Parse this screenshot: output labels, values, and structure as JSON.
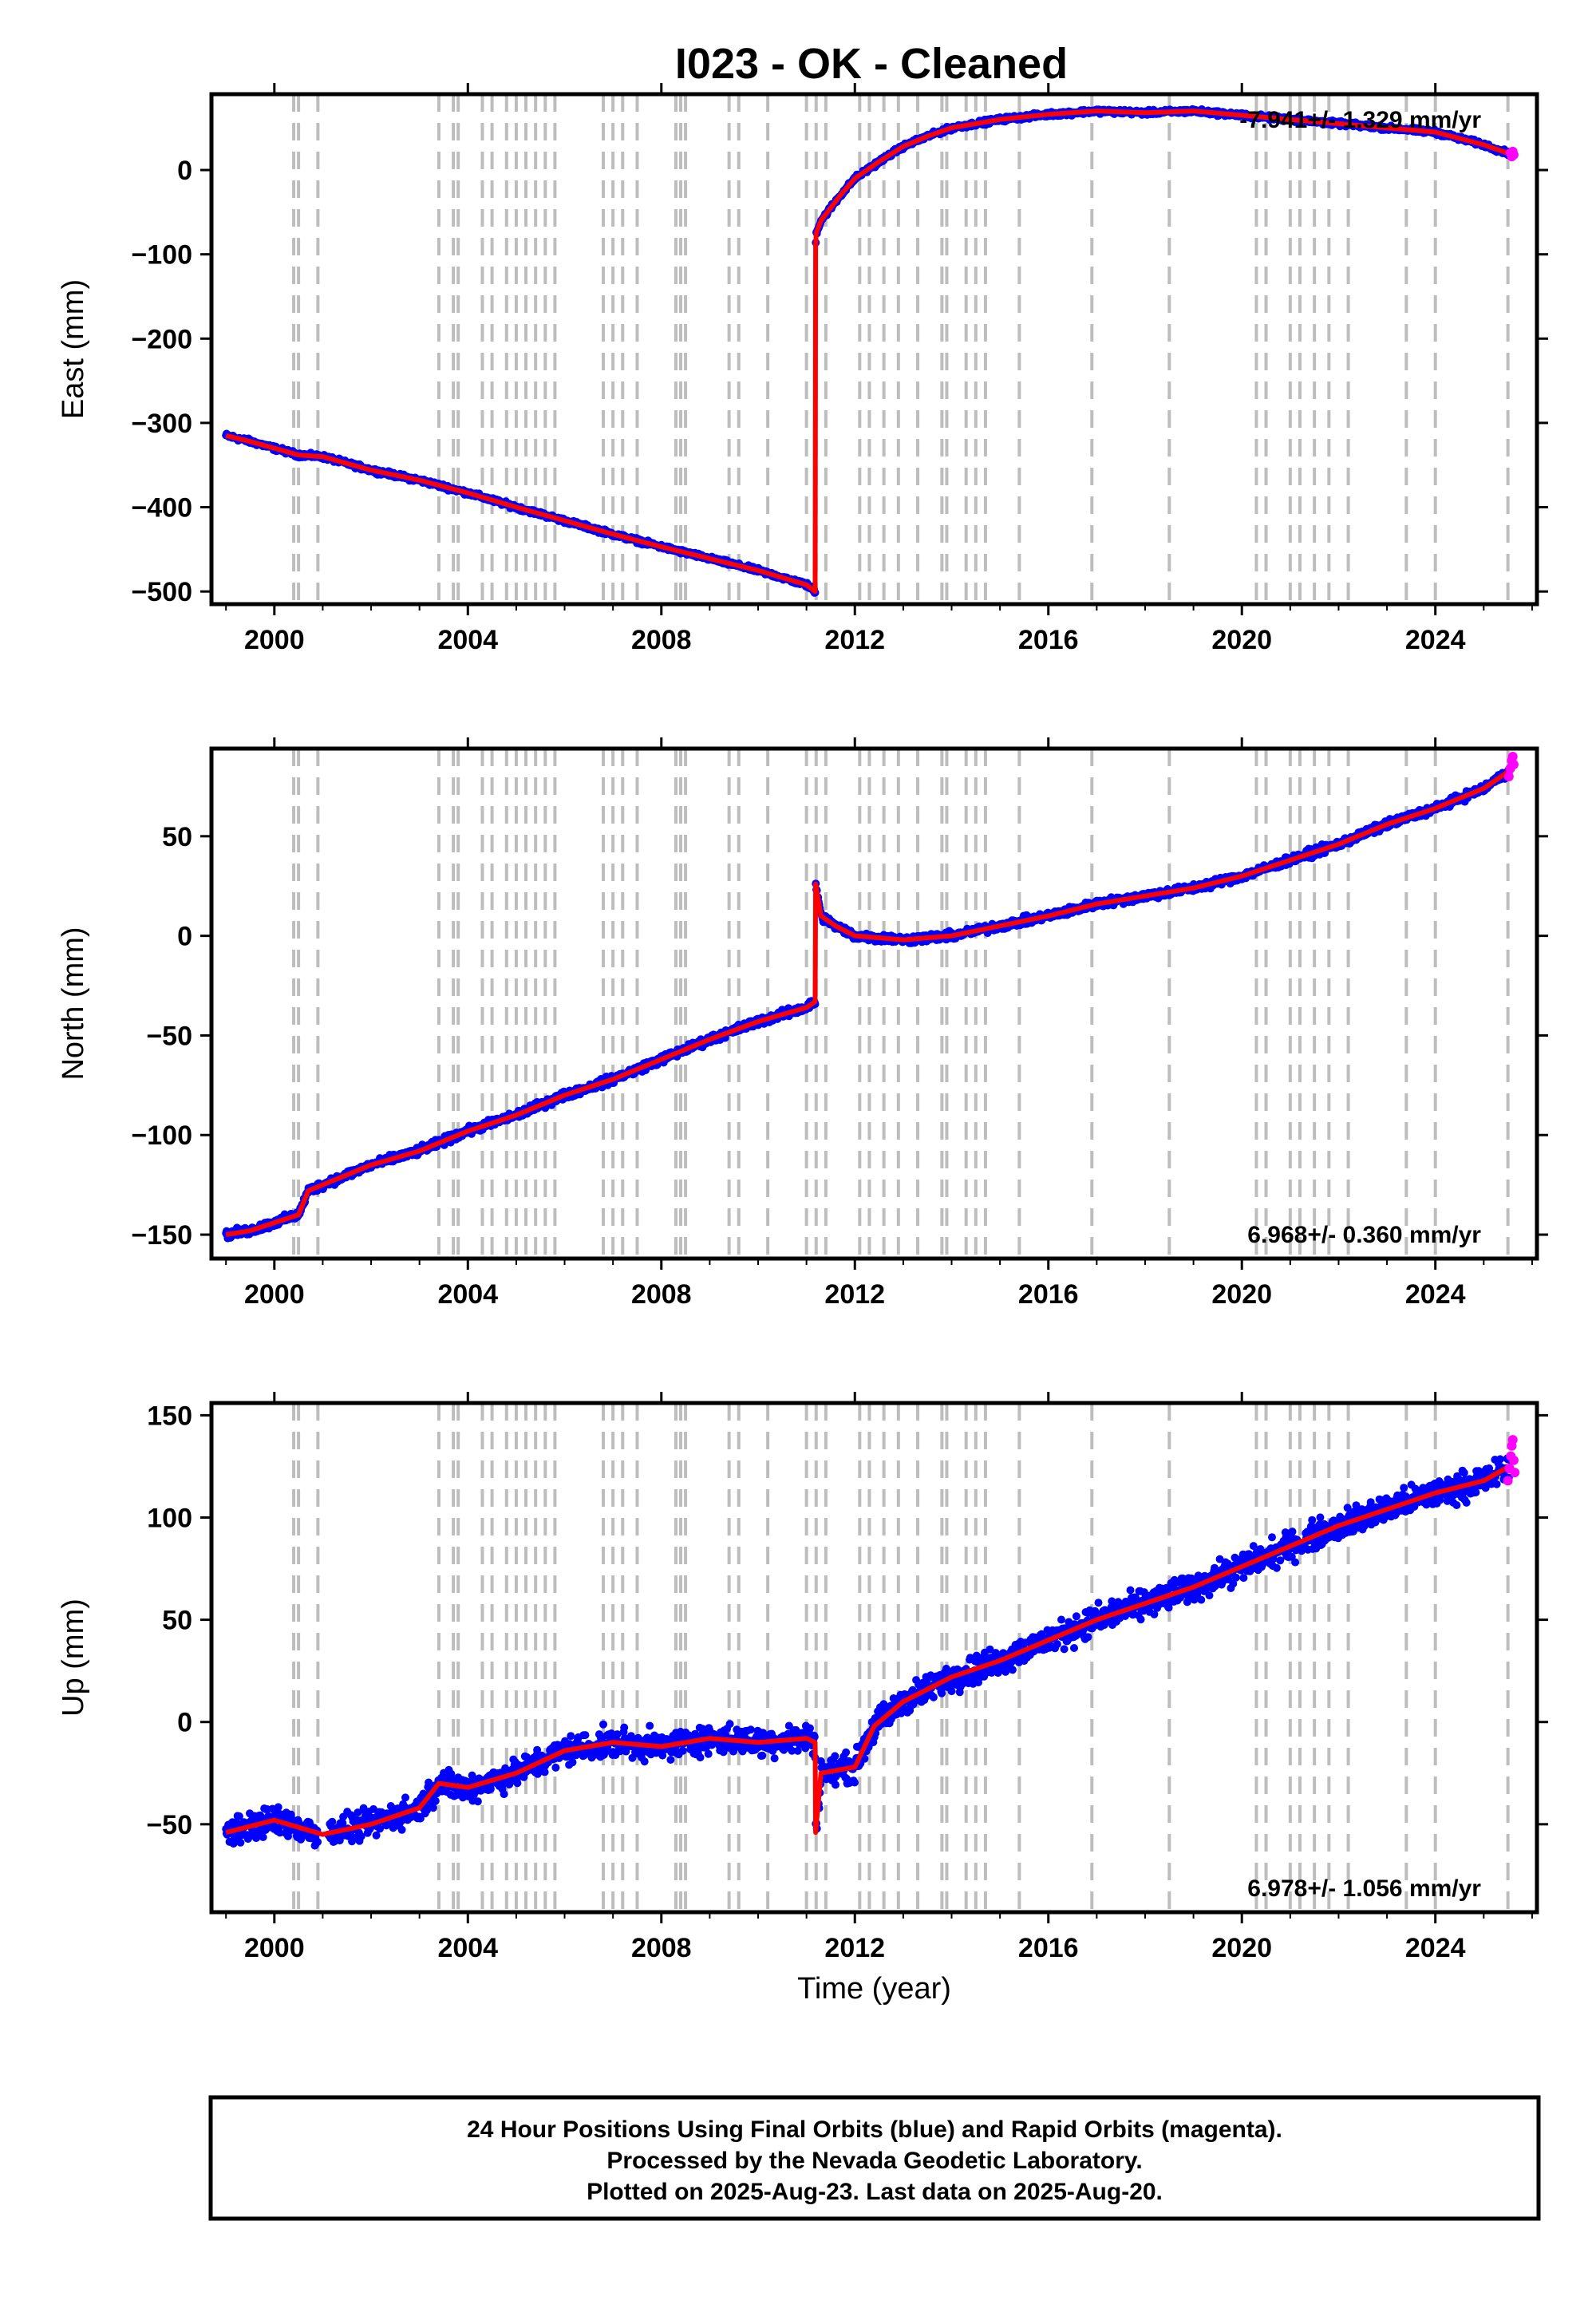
{
  "title": "I023  - OK - Cleaned",
  "footer": {
    "line1": "24 Hour Positions Using Final Orbits (blue) and Rapid Orbits (magenta).",
    "line2": "Processed by the Nevada Geodetic Laboratory.",
    "line3": "Plotted on 2025-Aug-23. Last data on 2025-Aug-20."
  },
  "colors": {
    "final_orbits": "#0000ff",
    "rapid_orbits": "#ff00ff",
    "model": "#ff0000",
    "event_lines": "#bdbdbd"
  },
  "event_lines": [
    2000.4,
    2000.5,
    2000.9,
    2003.4,
    2003.7,
    2003.8,
    2004.3,
    2004.5,
    2004.8,
    2005.0,
    2005.2,
    2005.4,
    2005.6,
    2005.8,
    2006.8,
    2007.0,
    2007.2,
    2007.5,
    2008.3,
    2008.4,
    2008.5,
    2009.4,
    2009.6,
    2010.2,
    2011.0,
    2011.2,
    2011.4,
    2012.1,
    2012.3,
    2012.6,
    2012.9,
    2013.3,
    2013.8,
    2013.9,
    2014.3,
    2014.5,
    2014.7,
    2015.4,
    2016.9,
    2018.5,
    2020.3,
    2020.5,
    2021.0,
    2021.2,
    2021.5,
    2021.8,
    2022.2,
    2023.4,
    2024.0,
    2025.5
  ],
  "chart_data": [
    {
      "type": "scatter",
      "ylabel": "East (mm)",
      "xlabel": "",
      "rate_label": "-7.941+/- 1.329 mm/yr",
      "rate_position": "top-right",
      "xlim": [
        1998.7,
        2026.1
      ],
      "ylim": [
        -515,
        90
      ],
      "xticks": [
        2000,
        2004,
        2008,
        2012,
        2016,
        2020,
        2024
      ],
      "yticks": [
        0,
        -100,
        -200,
        -300,
        -400,
        -500
      ],
      "model_x": [
        1999.0,
        1999.5,
        2000.0,
        2000.5,
        2001.0,
        2002.0,
        2003.0,
        2004.0,
        2005.0,
        2006.0,
        2007.0,
        2008.0,
        2009.0,
        2010.0,
        2011.0,
        2011.18,
        2011.19,
        2011.2,
        2011.3,
        2011.5,
        2011.7,
        2012.0,
        2012.5,
        2013.0,
        2013.5,
        2014.0,
        2014.5,
        2015.0,
        2016.0,
        2017.0,
        2018.0,
        2019.0,
        2020.0,
        2021.0,
        2022.0,
        2023.0,
        2024.0,
        2025.0,
        2025.6
      ],
      "model_y": [
        -315,
        -322,
        -330,
        -338,
        -340,
        -356,
        -368,
        -383,
        -400,
        -416,
        -432,
        -447,
        -461,
        -475,
        -492,
        -500,
        -90,
        -75,
        -60,
        -45,
        -30,
        -10,
        10,
        28,
        40,
        50,
        55,
        60,
        66,
        70,
        68,
        70,
        65,
        60,
        55,
        50,
        45,
        30,
        18
      ],
      "rapid_x": [
        2025.55,
        2025.58,
        2025.6,
        2025.62
      ],
      "rapid_y": [
        20,
        16,
        22,
        18
      ]
    },
    {
      "type": "scatter",
      "ylabel": "North (mm)",
      "xlabel": "",
      "rate_label": "6.968+/- 0.360 mm/yr",
      "rate_position": "bottom-right",
      "xlim": [
        1998.7,
        2026.1
      ],
      "ylim": [
        -162,
        94
      ],
      "xticks": [
        2000,
        2004,
        2008,
        2012,
        2016,
        2020,
        2024
      ],
      "yticks": [
        50,
        0,
        -50,
        -100,
        -150
      ],
      "model_x": [
        1999.0,
        1999.5,
        2000.0,
        2000.5,
        2000.7,
        2001.0,
        2002.0,
        2003.0,
        2004.0,
        2005.0,
        2006.0,
        2007.0,
        2008.0,
        2009.0,
        2010.0,
        2011.0,
        2011.18,
        2011.19,
        2011.3,
        2011.6,
        2012.0,
        2013.0,
        2014.0,
        2015.0,
        2016.0,
        2017.0,
        2018.0,
        2019.0,
        2020.0,
        2021.0,
        2022.0,
        2023.0,
        2024.0,
        2025.0,
        2025.6
      ],
      "model_y": [
        -150,
        -148,
        -144,
        -140,
        -128,
        -125,
        -115,
        -108,
        -98,
        -90,
        -80,
        -72,
        -62,
        -52,
        -43,
        -36,
        -33,
        26,
        10,
        5,
        0,
        -2,
        0,
        5,
        10,
        16,
        20,
        24,
        30,
        38,
        46,
        56,
        64,
        74,
        84
      ],
      "rapid_x": [
        2025.52,
        2025.55,
        2025.58,
        2025.6,
        2025.62
      ],
      "rapid_y": [
        80,
        84,
        88,
        90,
        86
      ]
    },
    {
      "type": "scatter",
      "ylabel": "Up (mm)",
      "xlabel": "Time (year)",
      "rate_label": "6.978+/- 1.056 mm/yr",
      "rate_position": "bottom-right",
      "xlim": [
        1998.7,
        2026.1
      ],
      "ylim": [
        -93,
        156
      ],
      "xticks": [
        2000,
        2004,
        2008,
        2012,
        2016,
        2020,
        2024
      ],
      "yticks": [
        150,
        100,
        50,
        0,
        -50
      ],
      "model_x": [
        1999.0,
        2000.0,
        2001.0,
        2002.0,
        2003.0,
        2003.4,
        2004.0,
        2005.0,
        2006.0,
        2007.0,
        2008.0,
        2009.0,
        2010.0,
        2011.0,
        2011.18,
        2011.19,
        2011.3,
        2012.0,
        2012.4,
        2013.0,
        2014.0,
        2015.0,
        2016.0,
        2017.0,
        2018.0,
        2019.0,
        2020.0,
        2021.0,
        2022.0,
        2023.0,
        2024.0,
        2025.0,
        2025.6
      ],
      "model_y": [
        -54,
        -48,
        -55,
        -50,
        -42,
        -30,
        -32,
        -25,
        -14,
        -10,
        -12,
        -8,
        -10,
        -8,
        -10,
        -54,
        -25,
        -22,
        -2,
        10,
        22,
        30,
        40,
        50,
        58,
        66,
        76,
        86,
        96,
        104,
        112,
        118,
        126
      ],
      "rapid_x": [
        2025.5,
        2025.53,
        2025.56,
        2025.58,
        2025.6,
        2025.62,
        2025.64
      ],
      "rapid_y": [
        118,
        124,
        130,
        135,
        138,
        128,
        122
      ]
    }
  ]
}
